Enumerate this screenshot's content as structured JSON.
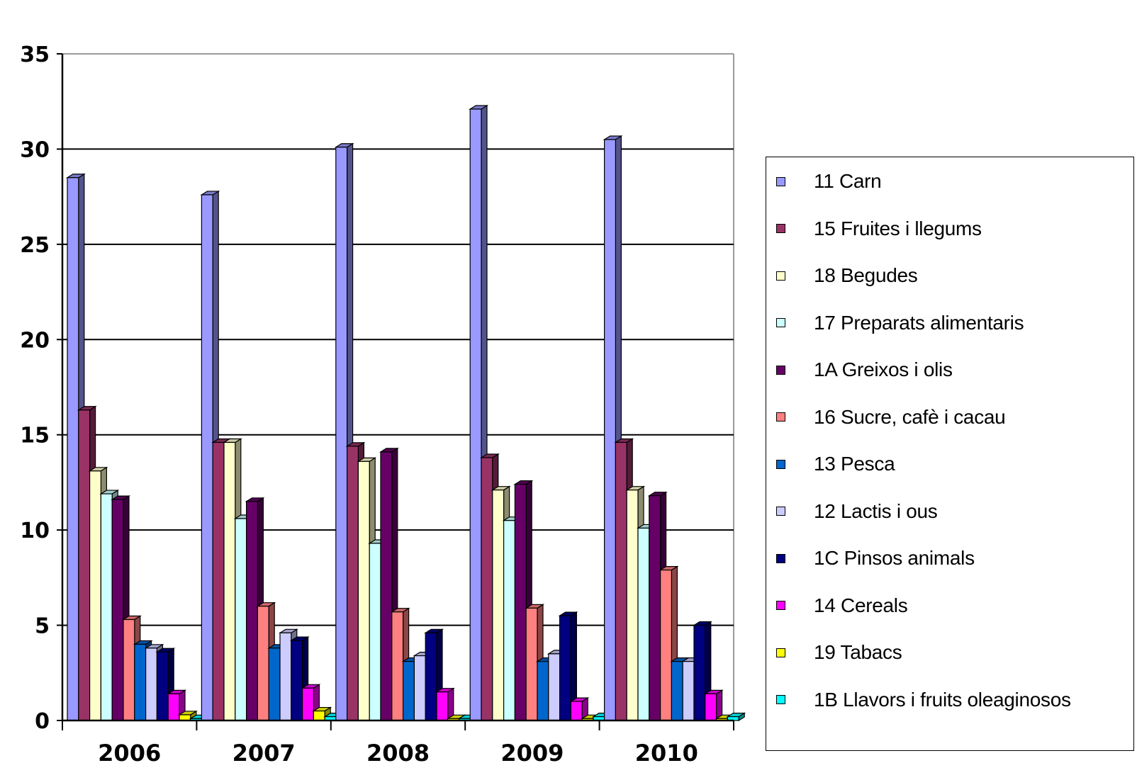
{
  "chart_data": {
    "type": "bar",
    "title": "",
    "xlabel": "",
    "ylabel": "",
    "ylim": [
      0,
      35
    ],
    "yticks": [
      0,
      5,
      10,
      15,
      20,
      25,
      30,
      35
    ],
    "grid": true,
    "legend_position": "right",
    "categories": [
      "2006",
      "2007",
      "2008",
      "2009",
      "2010"
    ],
    "series": [
      {
        "name": "11 Carn",
        "color": "#9999ff",
        "values": [
          28.5,
          27.6,
          30.1,
          32.1,
          30.5
        ]
      },
      {
        "name": "15 Fruites i llegums",
        "color": "#993366",
        "values": [
          16.3,
          14.6,
          14.4,
          13.8,
          14.6
        ]
      },
      {
        "name": "18 Begudes",
        "color": "#ffffcc",
        "values": [
          13.1,
          14.6,
          13.6,
          12.1,
          12.1
        ]
      },
      {
        "name": "17 Preparats alimentaris",
        "color": "#ccffff",
        "values": [
          11.9,
          10.6,
          9.3,
          10.5,
          10.1
        ]
      },
      {
        "name": "1A Greixos i olis",
        "color": "#660066",
        "values": [
          11.6,
          11.5,
          14.1,
          12.4,
          11.8
        ]
      },
      {
        "name": "16 Sucre, cafè i cacau",
        "color": "#ff8080",
        "values": [
          5.3,
          6.0,
          5.7,
          5.9,
          7.9
        ]
      },
      {
        "name": "13 Pesca",
        "color": "#0066cc",
        "values": [
          4.0,
          3.8,
          3.1,
          3.1,
          3.1
        ]
      },
      {
        "name": "12 Lactis i ous",
        "color": "#ccccff",
        "values": [
          3.8,
          4.6,
          3.4,
          3.5,
          3.1
        ]
      },
      {
        "name": "1C Pinsos animals",
        "color": "#000080",
        "values": [
          3.6,
          4.2,
          4.6,
          5.5,
          5.0
        ]
      },
      {
        "name": "14 Cereals",
        "color": "#ff00ff",
        "values": [
          1.4,
          1.7,
          1.5,
          1.0,
          1.4
        ]
      },
      {
        "name": "19 Tabacs",
        "color": "#ffff00",
        "values": [
          0.3,
          0.5,
          0.1,
          0.1,
          0.1
        ]
      },
      {
        "name": "1B Llavors i fruits oleaginosos",
        "color": "#00ffff",
        "values": [
          0.1,
          0.2,
          0.1,
          0.2,
          0.2
        ]
      }
    ]
  }
}
